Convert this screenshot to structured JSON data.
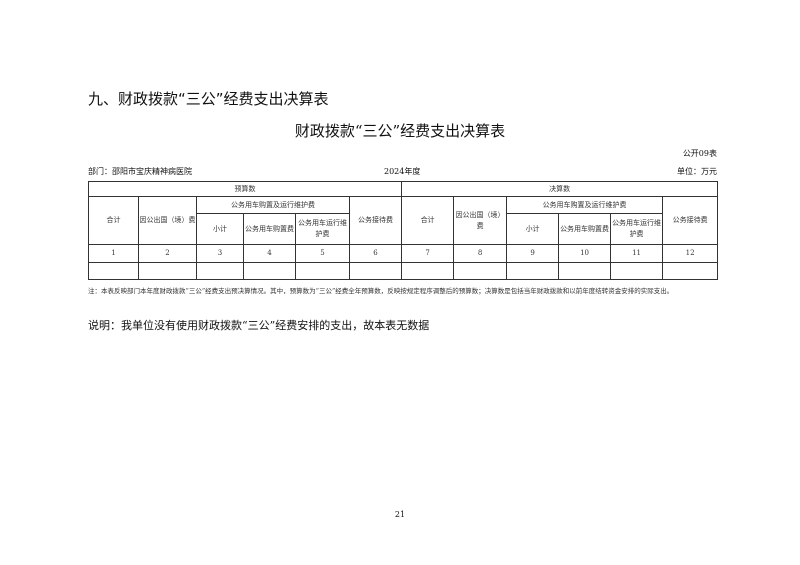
{
  "section_title": "九、财政拨款“三公”经费支出决算表",
  "table_title": "财政拨款“三公”经费支出决算表",
  "form_no": "公开09表",
  "department": "部门：邵阳市宝庆精神病医院",
  "year": "2024年度",
  "unit": "单位：万元",
  "headers": {
    "budget": "预算数",
    "final": "决算数",
    "total": "合计",
    "abroad": "因公出国（境）费",
    "car_group": "公务用车购置及运行维护费",
    "subtotal": "小计",
    "car_buy": "公务用车购置费",
    "car_run": "公务用车运行维护费",
    "reception": "公务接待费"
  },
  "col_numbers": [
    "1",
    "2",
    "3",
    "4",
    "5",
    "6",
    "7",
    "8",
    "9",
    "10",
    "11",
    "12"
  ],
  "note": "注：本表反映部门本年度财政拨款“三公”经费支出预决算情况。其中，预算数为“三公”经费全年预算数，反映按规定程序调整后的预算数；决算数是包括当年财政拨款和以前年度结转资金安排的实际支出。",
  "explanation": "说明：我单位没有使用财政拨款“三公”经费安排的支出，故本表无数据",
  "page_number": "21"
}
